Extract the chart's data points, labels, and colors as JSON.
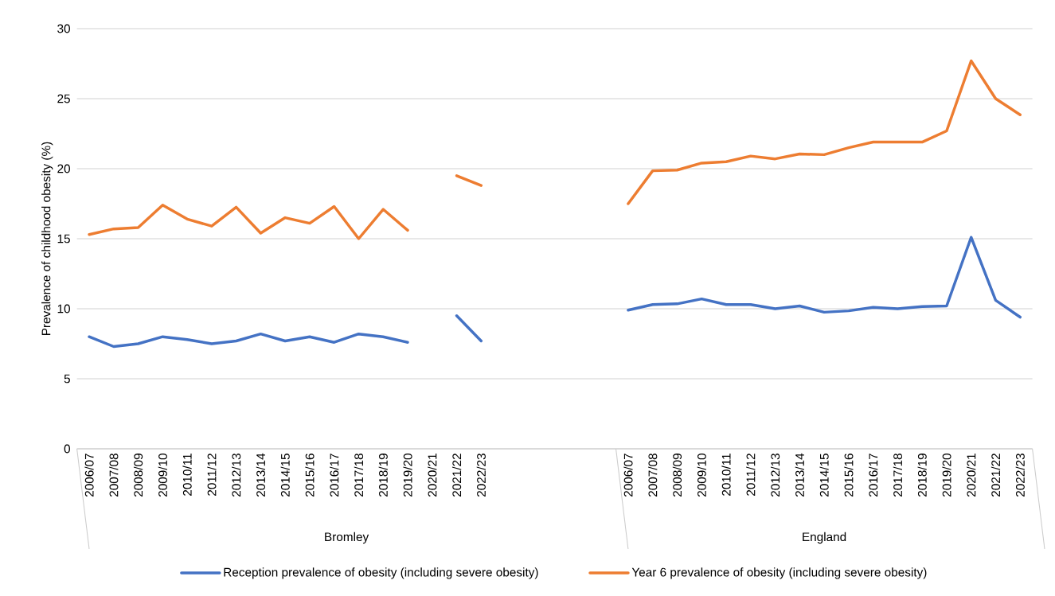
{
  "chart_data": {
    "type": "line",
    "ylabel": "Prevalence of childhood obesity (%)",
    "categories": [
      "2006/07",
      "2007/08",
      "2008/09",
      "2009/10",
      "2010/11",
      "2011/12",
      "2012/13",
      "2013/14",
      "2014/15",
      "2015/16",
      "2016/17",
      "2017/18",
      "2018/19",
      "2019/20",
      "2020/21",
      "2021/22",
      "2022/23",
      null,
      null,
      null,
      null,
      null,
      "2006/07",
      "2007/08",
      "2008/09",
      "2009/10",
      "2010/11",
      "2011/12",
      "2012/13",
      "2013/14",
      "2014/15",
      "2015/16",
      "2016/17",
      "2017/18",
      "2018/19",
      "2019/20",
      "2020/21",
      "2021/22",
      "2022/23"
    ],
    "series": [
      {
        "name": "Reception prevalence of obesity (including severe obesity)",
        "color": "#4472c4",
        "values": [
          8.0,
          7.3,
          7.5,
          8.0,
          7.8,
          7.5,
          7.7,
          8.2,
          7.7,
          8.0,
          7.6,
          8.2,
          8.0,
          7.6,
          null,
          9.5,
          7.7,
          null,
          null,
          null,
          null,
          null,
          9.9,
          10.3,
          10.35,
          10.7,
          10.3,
          10.3,
          10.0,
          10.2,
          9.75,
          9.85,
          10.1,
          10.0,
          10.15,
          10.2,
          15.1,
          10.6,
          9.4
        ]
      },
      {
        "name": "Year 6 prevalence of obesity (including severe obesity)",
        "color": "#ed7d31",
        "values": [
          15.3,
          15.7,
          15.8,
          17.4,
          16.4,
          15.9,
          17.25,
          15.4,
          16.5,
          16.1,
          17.3,
          15.0,
          17.1,
          15.6,
          null,
          19.5,
          18.8,
          null,
          null,
          null,
          null,
          null,
          17.5,
          19.85,
          19.9,
          20.4,
          20.5,
          20.9,
          20.7,
          21.05,
          21.0,
          21.5,
          21.9,
          21.9,
          21.9,
          22.7,
          27.7,
          25.0,
          23.85
        ]
      }
    ],
    "annotations": [
      "Bromley",
      "England"
    ],
    "ylim": [
      0,
      30
    ],
    "yticks": [
      0,
      5,
      10,
      15,
      20,
      25,
      30
    ],
    "grid": "y",
    "legend": "bottom",
    "marker": "none",
    "line_style": "solid"
  }
}
